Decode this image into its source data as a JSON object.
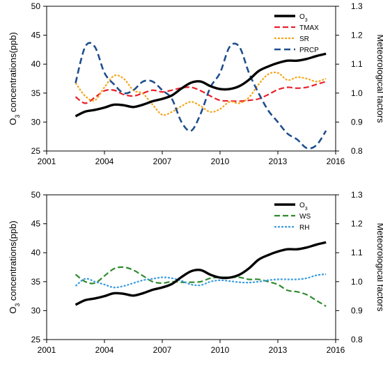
{
  "colors": {
    "O3": "#000000",
    "TMAX": "#e8202a",
    "SR": "#f5a51c",
    "PRCP": "#1f4e8c",
    "WS": "#2e8b2e",
    "RH": "#3a9be0"
  },
  "chart_data": [
    {
      "type": "line",
      "xlim": [
        2001,
        2016
      ],
      "x_ticks": [
        "2001",
        "2004",
        "2007",
        "2010",
        "2013",
        "2016"
      ],
      "ylim_left": [
        25,
        50
      ],
      "y_ticks_left": [
        "25",
        "30",
        "35",
        "40",
        "45",
        "50"
      ],
      "ylim_right": [
        0.8,
        1.3
      ],
      "y_ticks_right": [
        "0.8",
        "0.9",
        "1.0",
        "1.1",
        "1.2",
        "1.3"
      ],
      "ylabel_left": "O3 concentrations(ppb)",
      "ylabel_right": "Meteorological factors",
      "legend_position": "top-right",
      "series": [
        {
          "name": "O3",
          "axis": "left",
          "style": "solid",
          "color_key": "O3",
          "x": [
            2002.5,
            2003,
            2003.5,
            2004,
            2004.5,
            2005,
            2005.5,
            2006,
            2006.5,
            2007,
            2007.5,
            2008,
            2008.5,
            2009,
            2009.5,
            2010,
            2010.5,
            2011,
            2011.5,
            2012,
            2012.5,
            2013,
            2013.5,
            2014,
            2014.5,
            2015,
            2015.5
          ],
          "values": [
            31.0,
            31.8,
            32.1,
            32.5,
            33.0,
            32.9,
            32.6,
            33.0,
            33.6,
            34.0,
            34.6,
            35.8,
            36.8,
            37.0,
            36.2,
            35.7,
            35.7,
            36.2,
            37.3,
            38.8,
            39.6,
            40.2,
            40.6,
            40.6,
            40.9,
            41.4,
            41.8
          ]
        },
        {
          "name": "TMAX",
          "axis": "right",
          "style": "dashed",
          "color_key": "TMAX",
          "x": [
            2002.5,
            2003,
            2003.5,
            2004,
            2004.5,
            2005,
            2005.5,
            2006,
            2006.5,
            2007,
            2007.5,
            2008,
            2008.5,
            2009,
            2009.5,
            2010,
            2010.5,
            2011,
            2011.5,
            2012,
            2012.5,
            2013,
            2013.5,
            2014,
            2014.5,
            2015,
            2015.5
          ],
          "values": [
            0.987,
            0.965,
            0.985,
            1.008,
            1.01,
            0.995,
            0.99,
            1.0,
            1.01,
            1.004,
            1.01,
            1.018,
            1.02,
            1.008,
            0.99,
            0.975,
            0.973,
            0.972,
            0.975,
            0.98,
            0.995,
            1.012,
            1.02,
            1.017,
            1.02,
            1.03,
            1.04
          ]
        },
        {
          "name": "SR",
          "axis": "right",
          "style": "dotted",
          "color_key": "SR",
          "x": [
            2002.5,
            2003,
            2003.5,
            2004,
            2004.5,
            2005,
            2005.5,
            2006,
            2006.5,
            2007,
            2007.5,
            2008,
            2008.5,
            2009,
            2009.5,
            2010,
            2010.5,
            2011,
            2011.5,
            2012,
            2012.5,
            2013,
            2013.5,
            2014,
            2014.5,
            2015,
            2015.5
          ],
          "values": [
            1.035,
            0.99,
            0.975,
            1.02,
            1.06,
            1.05,
            1.01,
            0.998,
            0.96,
            0.925,
            0.935,
            0.955,
            0.97,
            0.955,
            0.935,
            0.945,
            0.97,
            0.965,
            0.985,
            1.03,
            1.065,
            1.07,
            1.045,
            1.055,
            1.05,
            1.04,
            1.05
          ]
        },
        {
          "name": "PRCP",
          "axis": "right",
          "style": "dashed-long",
          "color_key": "PRCP",
          "x": [
            2002.5,
            2003,
            2003.5,
            2004,
            2004.5,
            2005,
            2005.5,
            2006,
            2006.5,
            2007,
            2007.5,
            2008,
            2008.5,
            2009,
            2009.5,
            2010,
            2010.5,
            2011,
            2011.5,
            2012,
            2012.5,
            2013,
            2013.5,
            2014,
            2014.5,
            2015,
            2015.5
          ],
          "values": [
            1.035,
            1.16,
            1.16,
            1.07,
            1.03,
            1.0,
            1.01,
            1.04,
            1.04,
            1.01,
            0.98,
            0.9,
            0.87,
            0.93,
            1.02,
            1.07,
            1.16,
            1.16,
            1.07,
            1.0,
            0.94,
            0.9,
            0.86,
            0.84,
            0.81,
            0.82,
            0.87
          ]
        }
      ]
    },
    {
      "type": "line",
      "xlim": [
        2001,
        2016
      ],
      "x_ticks": [
        "2001",
        "2004",
        "2007",
        "2010",
        "2013",
        "2016"
      ],
      "ylim_left": [
        25,
        50
      ],
      "y_ticks_left": [
        "25",
        "30",
        "35",
        "40",
        "45",
        "50"
      ],
      "ylim_right": [
        0.8,
        1.3
      ],
      "y_ticks_right": [
        "0.8",
        "0.9",
        "1.0",
        "1.1",
        "1.2",
        "1.3"
      ],
      "ylabel_left": "O3 concentrations(ppb)",
      "ylabel_right": "Meteorological factors",
      "legend_position": "top-right",
      "series": [
        {
          "name": "O3",
          "axis": "left",
          "style": "solid",
          "color_key": "O3",
          "x": [
            2002.5,
            2003,
            2003.5,
            2004,
            2004.5,
            2005,
            2005.5,
            2006,
            2006.5,
            2007,
            2007.5,
            2008,
            2008.5,
            2009,
            2009.5,
            2010,
            2010.5,
            2011,
            2011.5,
            2012,
            2012.5,
            2013,
            2013.5,
            2014,
            2014.5,
            2015,
            2015.5
          ],
          "values": [
            31.0,
            31.8,
            32.1,
            32.5,
            33.0,
            32.9,
            32.6,
            33.0,
            33.6,
            34.0,
            34.6,
            35.8,
            36.8,
            37.0,
            36.2,
            35.7,
            35.7,
            36.2,
            37.3,
            38.8,
            39.6,
            40.2,
            40.6,
            40.6,
            40.9,
            41.4,
            41.8
          ]
        },
        {
          "name": "WS",
          "axis": "right",
          "style": "dashed",
          "color_key": "WS",
          "x": [
            2002.5,
            2003,
            2003.5,
            2004,
            2004.5,
            2005,
            2005.5,
            2006,
            2006.5,
            2007,
            2007.5,
            2008,
            2008.5,
            2009,
            2009.5,
            2010,
            2010.5,
            2011,
            2011.5,
            2012,
            2012.5,
            2013,
            2013.5,
            2014,
            2014.5,
            2015,
            2015.5
          ],
          "values": [
            1.025,
            1.0,
            0.995,
            1.02,
            1.045,
            1.05,
            1.04,
            1.02,
            1.0,
            0.995,
            1.0,
            0.998,
            0.998,
            1.0,
            1.012,
            1.015,
            1.015,
            1.015,
            1.008,
            1.008,
            1.0,
            0.99,
            0.97,
            0.965,
            0.955,
            0.935,
            0.915
          ]
        },
        {
          "name": "RH",
          "axis": "right",
          "style": "dotted",
          "color_key": "RH",
          "x": [
            2002.5,
            2003,
            2003.5,
            2004,
            2004.5,
            2005,
            2005.5,
            2006,
            2006.5,
            2007,
            2007.5,
            2008,
            2008.5,
            2009,
            2009.5,
            2010,
            2010.5,
            2011,
            2011.5,
            2012,
            2012.5,
            2013,
            2013.5,
            2014,
            2014.5,
            2015,
            2015.5
          ],
          "values": [
            0.985,
            1.01,
            1.0,
            0.99,
            0.98,
            0.985,
            0.995,
            1.005,
            1.01,
            1.015,
            1.012,
            1.003,
            0.99,
            0.988,
            1.0,
            1.005,
            1.002,
            0.998,
            0.997,
            1.0,
            1.005,
            1.008,
            1.008,
            1.008,
            1.012,
            1.022,
            1.026
          ]
        }
      ]
    }
  ]
}
